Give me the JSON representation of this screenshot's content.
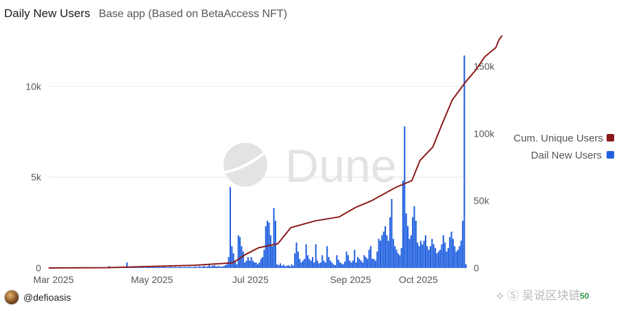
{
  "header": {
    "title": "Daily New Users",
    "subtitle": "Base app (Based on BetaAccess NFT)"
  },
  "footer": {
    "author": "@defioasis",
    "watermark_text": "吴说区块链",
    "corner_badge": "50"
  },
  "watermark": {
    "logo_text": "Dune"
  },
  "colors": {
    "bars": "#1f5fe0",
    "cumulative_line": "#8b1a1a",
    "grid": "#e6e6e6",
    "watermark": "#e3e3e3"
  },
  "chart_data": {
    "type": "bar",
    "x_start_date": "2025-02-26",
    "x_ticks": [
      "Mar 2025",
      "May 2025",
      "Jul 2025",
      "Sep 2025",
      "Oct 2025"
    ],
    "y_left": {
      "range": [
        0,
        12800
      ],
      "ticks": [
        "0",
        "5k",
        "10k"
      ],
      "tick_values": [
        0,
        5000,
        10000
      ]
    },
    "y_right": {
      "range": [
        0,
        173000
      ],
      "ticks": [
        "0",
        "50k",
        "100k",
        "150k"
      ],
      "tick_values": [
        0,
        50000,
        100000,
        150000
      ]
    },
    "grid": true,
    "legend_position": "right",
    "series": [
      {
        "name": "Dail New Users",
        "type": "bar",
        "axis": "left",
        "values": [
          0,
          0,
          0,
          0,
          0,
          0,
          0,
          0,
          0,
          0,
          0,
          0,
          0,
          0,
          0,
          0,
          0,
          0,
          0,
          0,
          0,
          0,
          0,
          0,
          0,
          0,
          0,
          0,
          0,
          0,
          0,
          0,
          0,
          0,
          0,
          0,
          50,
          100,
          30,
          40,
          20,
          40,
          15,
          50,
          25,
          30,
          20,
          60,
          300,
          40,
          30,
          50,
          20,
          20,
          20,
          30,
          20,
          40,
          50,
          20,
          30,
          40,
          50,
          40,
          60,
          50,
          40,
          60,
          50,
          40,
          60,
          50,
          60,
          40,
          50,
          60,
          40,
          50,
          60,
          40,
          50,
          60,
          40,
          50,
          60,
          40,
          70,
          50,
          60,
          40,
          80,
          60,
          50,
          100,
          60,
          80,
          120,
          60,
          90,
          200,
          80,
          120,
          150,
          100,
          80,
          120,
          60,
          80,
          100,
          150,
          200,
          600,
          4450,
          1200,
          800,
          400,
          200,
          1800,
          1700,
          1200,
          900,
          300,
          400,
          600,
          400,
          600,
          400,
          300,
          300,
          200,
          300,
          500,
          600,
          1000,
          2300,
          2600,
          2500,
          1800,
          1200,
          3300,
          2600,
          200,
          150,
          250,
          120,
          180,
          100,
          120,
          150,
          90,
          200,
          120,
          800,
          1400,
          900,
          500,
          300,
          400,
          500,
          1300,
          700,
          500,
          400,
          600,
          300,
          1300,
          400,
          250,
          300,
          700,
          400,
          300,
          1200,
          600,
          400,
          300,
          200,
          150,
          700,
          450,
          300,
          250,
          200,
          350,
          900,
          700,
          400,
          300,
          400,
          1000,
          300,
          600,
          500,
          400,
          300,
          700,
          600,
          500,
          1000,
          1200,
          500,
          500,
          400,
          900,
          1600,
          1500,
          1800,
          2000,
          2300,
          1800,
          1500,
          2800,
          3800,
          1600,
          1200,
          1000,
          800,
          700,
          1100,
          4800,
          7800,
          3000,
          2300,
          1600,
          1800,
          2800,
          3400,
          2600,
          1400,
          1200,
          1500,
          1300,
          1500,
          1800,
          1200,
          1000,
          1200,
          1600,
          1300,
          1100,
          800,
          900,
          1000,
          1300,
          1800,
          1400,
          900,
          1100,
          1700,
          2000,
          1600,
          1200,
          900,
          1000,
          1200,
          1500,
          2600,
          11700,
          200
        ]
      },
      {
        "name": "Cum. Unique Users",
        "type": "line",
        "axis": "right",
        "points": [
          [
            0,
            0
          ],
          [
            36,
            200
          ],
          [
            60,
            1000
          ],
          [
            90,
            2000
          ],
          [
            114,
            3800
          ],
          [
            122,
            10000
          ],
          [
            130,
            15000
          ],
          [
            142,
            18000
          ],
          [
            150,
            30000
          ],
          [
            165,
            35000
          ],
          [
            180,
            38000
          ],
          [
            190,
            45000
          ],
          [
            200,
            50000
          ],
          [
            215,
            60000
          ],
          [
            225,
            65000
          ],
          [
            230,
            80000
          ],
          [
            238,
            90000
          ],
          [
            243,
            105000
          ],
          [
            250,
            125000
          ],
          [
            258,
            138000
          ],
          [
            265,
            148000
          ],
          [
            270,
            157000
          ],
          [
            277,
            164000
          ],
          [
            279,
            170000
          ],
          [
            281,
            173000
          ]
        ]
      }
    ]
  }
}
